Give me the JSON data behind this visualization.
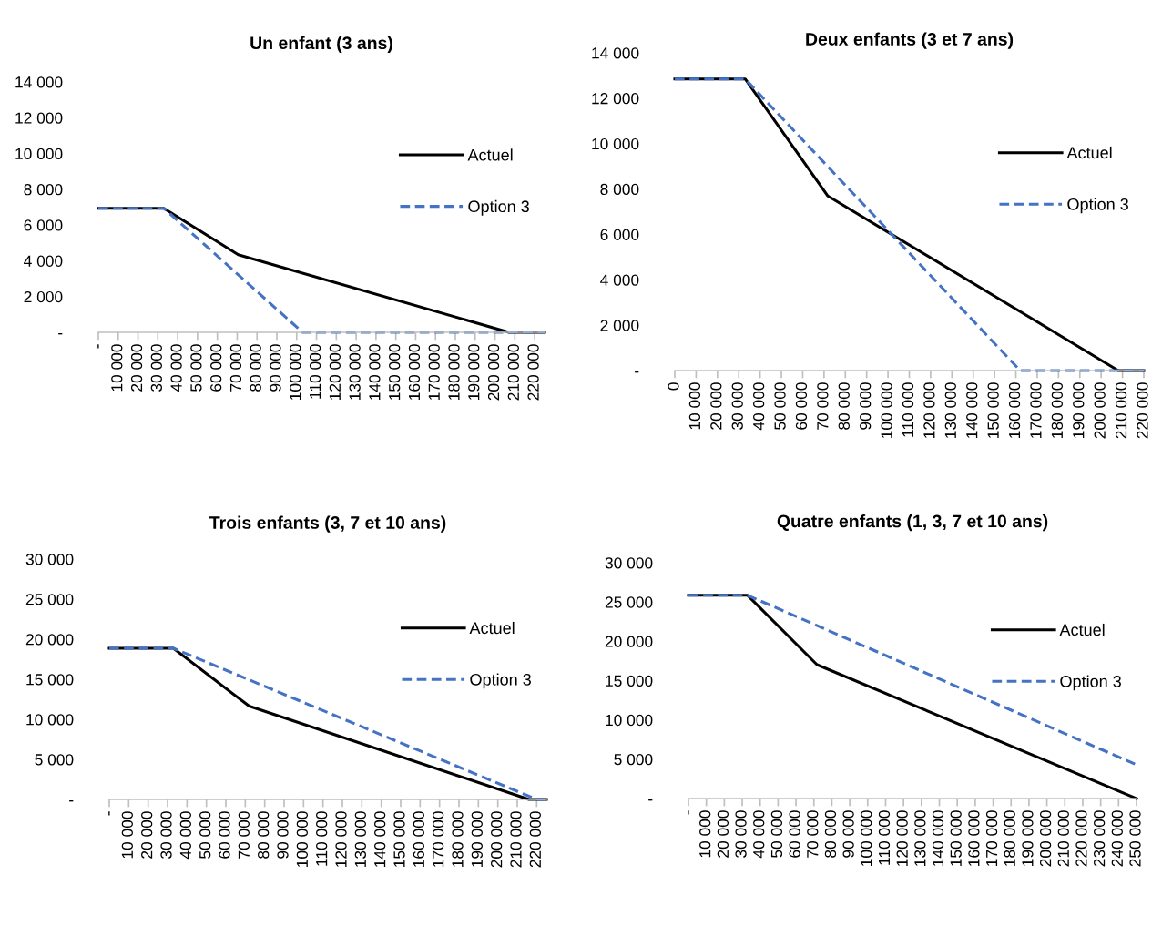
{
  "chart_data": [
    {
      "type": "line",
      "title": "Un enfant (3 ans)",
      "legend": "right",
      "grid": false,
      "xlim": [
        0,
        225000
      ],
      "ylim": [
        0,
        14000
      ],
      "xticks": [
        {
          "value": 0,
          "label": "-"
        },
        {
          "value": 10000,
          "label": "10 000"
        },
        {
          "value": 20000,
          "label": "20 000"
        },
        {
          "value": 30000,
          "label": "30 000"
        },
        {
          "value": 40000,
          "label": "40 000"
        },
        {
          "value": 50000,
          "label": "50 000"
        },
        {
          "value": 60000,
          "label": "60 000"
        },
        {
          "value": 70000,
          "label": "70 000"
        },
        {
          "value": 80000,
          "label": "80 000"
        },
        {
          "value": 90000,
          "label": "90 000"
        },
        {
          "value": 100000,
          "label": "100 000"
        },
        {
          "value": 110000,
          "label": "110 000"
        },
        {
          "value": 120000,
          "label": "120 000"
        },
        {
          "value": 130000,
          "label": "130 000"
        },
        {
          "value": 140000,
          "label": "140 000"
        },
        {
          "value": 150000,
          "label": "150 000"
        },
        {
          "value": 160000,
          "label": "160 000"
        },
        {
          "value": 170000,
          "label": "170 000"
        },
        {
          "value": 180000,
          "label": "180 000"
        },
        {
          "value": 190000,
          "label": "190 000"
        },
        {
          "value": 200000,
          "label": "200 000"
        },
        {
          "value": 210000,
          "label": "210 000"
        },
        {
          "value": 220000,
          "label": "220 000"
        }
      ],
      "yticks": [
        {
          "value": 0,
          "label": "-"
        },
        {
          "value": 2000,
          "label": "2 000"
        },
        {
          "value": 4000,
          "label": "4 000"
        },
        {
          "value": 6000,
          "label": "6 000"
        },
        {
          "value": 8000,
          "label": "8 000"
        },
        {
          "value": 10000,
          "label": "10 000"
        },
        {
          "value": 12000,
          "label": "12 000"
        },
        {
          "value": 14000,
          "label": "14 000"
        }
      ],
      "series": [
        {
          "name": "Actuel",
          "color": "#000000",
          "line_style": "solid",
          "x": [
            0,
            33000,
            70500,
            207000,
            225000
          ],
          "values": [
            6940,
            6940,
            4340,
            0,
            0
          ]
        },
        {
          "name": "Option 3",
          "color": "#4472c4",
          "line_style": "dashed",
          "x": [
            0,
            33000,
            103000,
            225000
          ],
          "values": [
            6940,
            6940,
            0,
            0
          ]
        }
      ]
    },
    {
      "type": "line",
      "title": "Deux enfants (3 et 7 ans)",
      "legend": "right",
      "grid": false,
      "xlim": [
        0,
        220000
      ],
      "ylim": [
        0,
        14000
      ],
      "xticks": [
        {
          "value": 0,
          "label": "0"
        },
        {
          "value": 10000,
          "label": "10 000"
        },
        {
          "value": 20000,
          "label": "20 000"
        },
        {
          "value": 30000,
          "label": "30 000"
        },
        {
          "value": 40000,
          "label": "40 000"
        },
        {
          "value": 50000,
          "label": "50 000"
        },
        {
          "value": 60000,
          "label": "60 000"
        },
        {
          "value": 70000,
          "label": "70 000"
        },
        {
          "value": 80000,
          "label": "80 000"
        },
        {
          "value": 90000,
          "label": "90 000"
        },
        {
          "value": 100000,
          "label": "100 000"
        },
        {
          "value": 110000,
          "label": "110 000"
        },
        {
          "value": 120000,
          "label": "120 000"
        },
        {
          "value": 130000,
          "label": "130 000"
        },
        {
          "value": 140000,
          "label": "140 000"
        },
        {
          "value": 150000,
          "label": "150 000"
        },
        {
          "value": 160000,
          "label": "160 000"
        },
        {
          "value": 170000,
          "label": "170 000"
        },
        {
          "value": 180000,
          "label": "180 000"
        },
        {
          "value": 190000,
          "label": "190 000"
        },
        {
          "value": 200000,
          "label": "200 000"
        },
        {
          "value": 210000,
          "label": "210 000"
        },
        {
          "value": 220000,
          "label": "220 000"
        }
      ],
      "yticks": [
        {
          "value": 0,
          "label": "-"
        },
        {
          "value": 2000,
          "label": "2 000"
        },
        {
          "value": 4000,
          "label": "4 000"
        },
        {
          "value": 6000,
          "label": "6 000"
        },
        {
          "value": 8000,
          "label": "8 000"
        },
        {
          "value": 10000,
          "label": "10 000"
        },
        {
          "value": 12000,
          "label": "12 000"
        },
        {
          "value": 14000,
          "label": "14 000"
        }
      ],
      "series": [
        {
          "name": "Actuel",
          "color": "#000000",
          "line_style": "solid",
          "x": [
            0,
            33000,
            71800,
            208000,
            220000
          ],
          "values": [
            12850,
            12850,
            7690,
            0,
            0
          ]
        },
        {
          "name": "Option 3",
          "color": "#4472c4",
          "line_style": "dashed",
          "x": [
            0,
            33000,
            162000,
            220000
          ],
          "values": [
            12850,
            12850,
            0,
            0
          ]
        }
      ]
    },
    {
      "type": "line",
      "title": "Trois enfants (3, 7 et 10 ans)",
      "legend": "right",
      "grid": false,
      "xlim": [
        0,
        225000
      ],
      "ylim": [
        0,
        30000
      ],
      "xticks": [
        {
          "value": 0,
          "label": "-"
        },
        {
          "value": 10000,
          "label": "10 000"
        },
        {
          "value": 20000,
          "label": "20 000"
        },
        {
          "value": 30000,
          "label": "30 000"
        },
        {
          "value": 40000,
          "label": "40 000"
        },
        {
          "value": 50000,
          "label": "50 000"
        },
        {
          "value": 60000,
          "label": "60 000"
        },
        {
          "value": 70000,
          "label": "70 000"
        },
        {
          "value": 80000,
          "label": "80 000"
        },
        {
          "value": 90000,
          "label": "90 000"
        },
        {
          "value": 100000,
          "label": "100 000"
        },
        {
          "value": 110000,
          "label": "110 000"
        },
        {
          "value": 120000,
          "label": "120 000"
        },
        {
          "value": 130000,
          "label": "130 000"
        },
        {
          "value": 140000,
          "label": "140 000"
        },
        {
          "value": 150000,
          "label": "150 000"
        },
        {
          "value": 160000,
          "label": "160 000"
        },
        {
          "value": 170000,
          "label": "170 000"
        },
        {
          "value": 180000,
          "label": "180 000"
        },
        {
          "value": 190000,
          "label": "190 000"
        },
        {
          "value": 200000,
          "label": "200 000"
        },
        {
          "value": 210000,
          "label": "210 000"
        },
        {
          "value": 220000,
          "label": "220 000"
        }
      ],
      "yticks": [
        {
          "value": 0,
          "label": "-"
        },
        {
          "value": 5000,
          "label": "5 000"
        },
        {
          "value": 10000,
          "label": "10 000"
        },
        {
          "value": 15000,
          "label": "15 000"
        },
        {
          "value": 20000,
          "label": "20 000"
        },
        {
          "value": 25000,
          "label": "25 000"
        },
        {
          "value": 30000,
          "label": "30 000"
        }
      ],
      "series": [
        {
          "name": "Actuel",
          "color": "#000000",
          "line_style": "solid",
          "x": [
            0,
            33000,
            72000,
            216000,
            225000
          ],
          "values": [
            18860,
            18860,
            11640,
            0,
            0
          ]
        },
        {
          "name": "Option 3",
          "color": "#4472c4",
          "line_style": "dashed",
          "x": [
            0,
            33000,
            220000,
            225000
          ],
          "values": [
            18860,
            18860,
            0,
            0
          ]
        }
      ]
    },
    {
      "type": "line",
      "title": "Quatre enfants (1, 3, 7 et 10 ans)",
      "legend": "right",
      "grid": false,
      "xlim": [
        0,
        250000
      ],
      "ylim": [
        0,
        30000
      ],
      "xticks": [
        {
          "value": 0,
          "label": "-"
        },
        {
          "value": 10000,
          "label": "10 000"
        },
        {
          "value": 20000,
          "label": "20 000"
        },
        {
          "value": 30000,
          "label": "30 000"
        },
        {
          "value": 40000,
          "label": "40 000"
        },
        {
          "value": 50000,
          "label": "50 000"
        },
        {
          "value": 60000,
          "label": "60 000"
        },
        {
          "value": 70000,
          "label": "70 000"
        },
        {
          "value": 80000,
          "label": "80 000"
        },
        {
          "value": 90000,
          "label": "90 000"
        },
        {
          "value": 100000,
          "label": "100 000"
        },
        {
          "value": 110000,
          "label": "110 000"
        },
        {
          "value": 120000,
          "label": "120 000"
        },
        {
          "value": 130000,
          "label": "130 000"
        },
        {
          "value": 140000,
          "label": "140 000"
        },
        {
          "value": 150000,
          "label": "150 000"
        },
        {
          "value": 160000,
          "label": "160 000"
        },
        {
          "value": 170000,
          "label": "170 000"
        },
        {
          "value": 180000,
          "label": "180 000"
        },
        {
          "value": 190000,
          "label": "190 000"
        },
        {
          "value": 200000,
          "label": "200 000"
        },
        {
          "value": 210000,
          "label": "210 000"
        },
        {
          "value": 220000,
          "label": "220 000"
        },
        {
          "value": 230000,
          "label": "230 000"
        },
        {
          "value": 240000,
          "label": "240 000"
        },
        {
          "value": 250000,
          "label": "250 000"
        }
      ],
      "yticks": [
        {
          "value": 0,
          "label": "-"
        },
        {
          "value": 5000,
          "label": "5 000"
        },
        {
          "value": 10000,
          "label": "10 000"
        },
        {
          "value": 15000,
          "label": "15 000"
        },
        {
          "value": 20000,
          "label": "20 000"
        },
        {
          "value": 25000,
          "label": "25 000"
        },
        {
          "value": 30000,
          "label": "30 000"
        }
      ],
      "series": [
        {
          "name": "Actuel",
          "color": "#000000",
          "line_style": "solid",
          "x": [
            0,
            33000,
            71700,
            250000
          ],
          "values": [
            25850,
            25850,
            17030,
            0
          ]
        },
        {
          "name": "Option 3",
          "color": "#4472c4",
          "line_style": "dashed",
          "x": [
            0,
            33000,
            250000
          ],
          "values": [
            25850,
            25850,
            4290
          ]
        }
      ]
    }
  ]
}
